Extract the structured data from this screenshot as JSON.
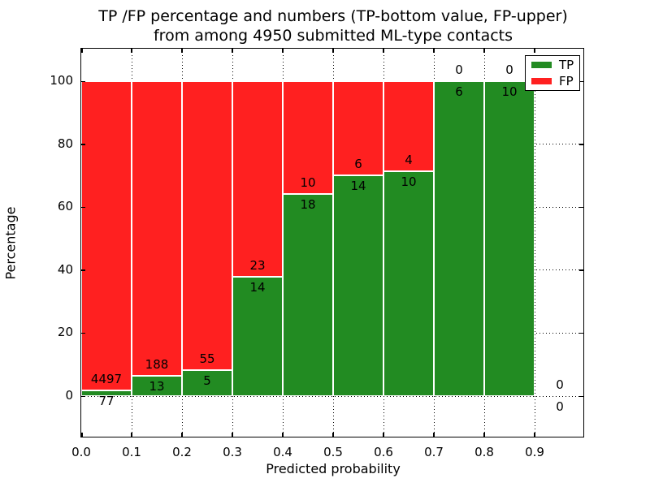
{
  "title": {
    "line1": "TP /FP percentage and numbers (TP-bottom value, FP-upper)",
    "line2": "from among 4950 submitted ML-type contacts"
  },
  "axes": {
    "xlabel": "Predicted probability",
    "ylabel": "Percentage",
    "x_tick_labels": [
      "0.0",
      "0.1",
      "0.2",
      "0.3",
      "0.4",
      "0.5",
      "0.6",
      "0.7",
      "0.8",
      "0.9"
    ],
    "y_tick_labels": [
      "0",
      "20",
      "40",
      "60",
      "80",
      "100"
    ],
    "y_tick_values": [
      0,
      20,
      40,
      60,
      80,
      100
    ]
  },
  "legend": {
    "items": [
      {
        "label": "TP",
        "color": "#228b22"
      },
      {
        "label": "FP",
        "color": "#ff2020"
      }
    ]
  },
  "chart_data": {
    "type": "bar",
    "stacked": true,
    "normalization": "each bar scaled to 100%",
    "title": "TP /FP percentage and numbers (TP-bottom value, FP-upper) from among 4950 submitted ML-type contacts",
    "xlabel": "Predicted probability",
    "ylabel": "Percentage",
    "x_bin_edges": [
      0.0,
      0.1,
      0.2,
      0.3,
      0.4,
      0.5,
      0.6,
      0.7,
      0.8,
      0.9,
      1.0
    ],
    "series": [
      {
        "name": "TP",
        "color": "#228b22",
        "position": "bottom",
        "values": [
          77,
          13,
          5,
          14,
          18,
          14,
          10,
          6,
          10,
          0
        ]
      },
      {
        "name": "FP",
        "color": "#ff2020",
        "position": "top",
        "values": [
          4497,
          188,
          55,
          23,
          10,
          6,
          4,
          0,
          0,
          0
        ]
      }
    ],
    "total_contacts": 4950,
    "ylim": [
      0,
      100
    ],
    "grid": true,
    "grid_style": "dotted",
    "legend_position": "upper right"
  }
}
